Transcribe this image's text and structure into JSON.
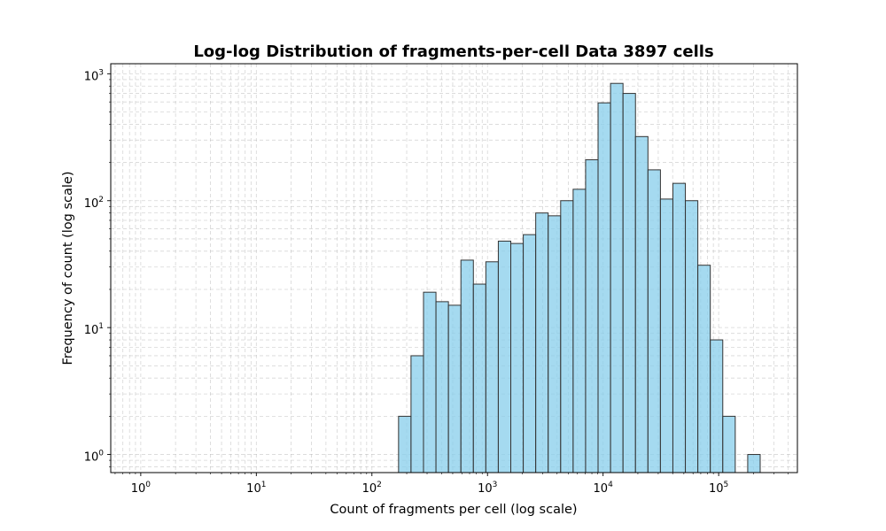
{
  "chart_data": {
    "type": "bar",
    "title": "Log-log Distribution of fragments-per-cell Data 3897 cells",
    "xlabel": "Count of fragments per cell (log scale)",
    "ylabel": "Frequency of count (log scale)",
    "xscale": "log",
    "yscale": "log",
    "xlim": [
      0.55,
      480000
    ],
    "ylim": [
      0.72,
      1200
    ],
    "grid": true,
    "bar_color": "#87CEEB",
    "edge_color": "#333333",
    "bin_edges": [
      170.0,
      217.9,
      279.4,
      358.2,
      459.2,
      588.7,
      754.7,
      967.5,
      1240.3,
      1590.1,
      2038.5,
      2613.4,
      3350.4,
      4295.2,
      5506.5,
      7059.4,
      9050.2,
      11602.4,
      14874.3,
      19069.1,
      24446.6,
      31340.6,
      40178.8,
      51509.5,
      66035.6,
      84658.3,
      108532.8,
      139139.8,
      178378.3,
      228682.8,
      293173.5
    ],
    "values": [
      2,
      6,
      19,
      16,
      15,
      34,
      22,
      33,
      48,
      46,
      54,
      80,
      76,
      100,
      123,
      210,
      590,
      840,
      700,
      320,
      175,
      103,
      137,
      100,
      31,
      8,
      2,
      0,
      1,
      0
    ],
    "x_ticks": [
      {
        "base": "10",
        "exp": "0"
      },
      {
        "base": "10",
        "exp": "1"
      },
      {
        "base": "10",
        "exp": "2"
      },
      {
        "base": "10",
        "exp": "3"
      },
      {
        "base": "10",
        "exp": "4"
      },
      {
        "base": "10",
        "exp": "5"
      }
    ],
    "y_ticks": [
      {
        "base": "10",
        "exp": "0"
      },
      {
        "base": "10",
        "exp": "1"
      },
      {
        "base": "10",
        "exp": "2"
      },
      {
        "base": "10",
        "exp": "3"
      }
    ]
  }
}
